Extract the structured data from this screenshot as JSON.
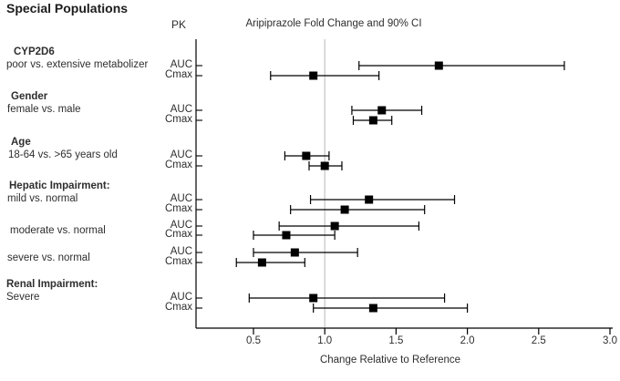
{
  "figure": {
    "title": "Special Populations",
    "pk_header": "PK"
  },
  "chart_data": {
    "type": "forest",
    "title": "Aripiprazole Fold Change and 90% CI",
    "xlabel": "Change Relative to Reference",
    "ci_level": "90%",
    "x_ticks": [
      "0.5",
      "1.0",
      "1.5",
      "2.0",
      "2.5",
      "3.0"
    ],
    "xlim": [
      0.1,
      3.05
    ],
    "reference_line": 1.0,
    "legend_position": "none",
    "grid": false,
    "groups": [
      {
        "heading": "CYP2D6",
        "subheading": "poor vs. extensive metabolizer",
        "rows": [
          {
            "pk": "AUC",
            "estimate": 1.8,
            "ci_low": 1.24,
            "ci_high": 2.68
          },
          {
            "pk": "Cmax",
            "estimate": 0.92,
            "ci_low": 0.62,
            "ci_high": 1.38
          }
        ]
      },
      {
        "heading": "Gender",
        "subheading": "female vs. male",
        "rows": [
          {
            "pk": "AUC",
            "estimate": 1.4,
            "ci_low": 1.19,
            "ci_high": 1.68
          },
          {
            "pk": "Cmax",
            "estimate": 1.34,
            "ci_low": 1.2,
            "ci_high": 1.47
          }
        ]
      },
      {
        "heading": "Age",
        "subheading": "18-64 vs. >65 years old",
        "rows": [
          {
            "pk": "AUC",
            "estimate": 0.87,
            "ci_low": 0.72,
            "ci_high": 1.03
          },
          {
            "pk": "Cmax",
            "estimate": 1.0,
            "ci_low": 0.89,
            "ci_high": 1.12
          }
        ]
      },
      {
        "heading": "Hepatic Impairment:",
        "subheading": "mild vs. normal",
        "rows": [
          {
            "pk": "AUC",
            "estimate": 1.31,
            "ci_low": 0.9,
            "ci_high": 1.91
          },
          {
            "pk": "Cmax",
            "estimate": 1.14,
            "ci_low": 0.76,
            "ci_high": 1.7
          }
        ]
      },
      {
        "heading": "",
        "subheading": "moderate vs. normal",
        "rows": [
          {
            "pk": "AUC",
            "estimate": 1.07,
            "ci_low": 0.68,
            "ci_high": 1.66
          },
          {
            "pk": "Cmax",
            "estimate": 0.73,
            "ci_low": 0.5,
            "ci_high": 1.07
          }
        ]
      },
      {
        "heading": "",
        "subheading": "severe vs. normal",
        "rows": [
          {
            "pk": "AUC",
            "estimate": 0.79,
            "ci_low": 0.5,
            "ci_high": 1.23
          },
          {
            "pk": "Cmax",
            "estimate": 0.56,
            "ci_low": 0.38,
            "ci_high": 0.86
          }
        ]
      },
      {
        "heading": "Renal Impairment:",
        "subheading": "Severe",
        "rows": [
          {
            "pk": "AUC",
            "estimate": 0.92,
            "ci_low": 0.47,
            "ci_high": 1.84
          },
          {
            "pk": "Cmax",
            "estimate": 1.34,
            "ci_low": 0.92,
            "ci_high": 2.0
          }
        ]
      }
    ],
    "colors": {
      "marker": "#000000",
      "ci_line": "#000000",
      "axis": "#000000",
      "reference_line": "#c9c9c9",
      "text": "#2e2e2e",
      "background": "#ffffff"
    }
  }
}
